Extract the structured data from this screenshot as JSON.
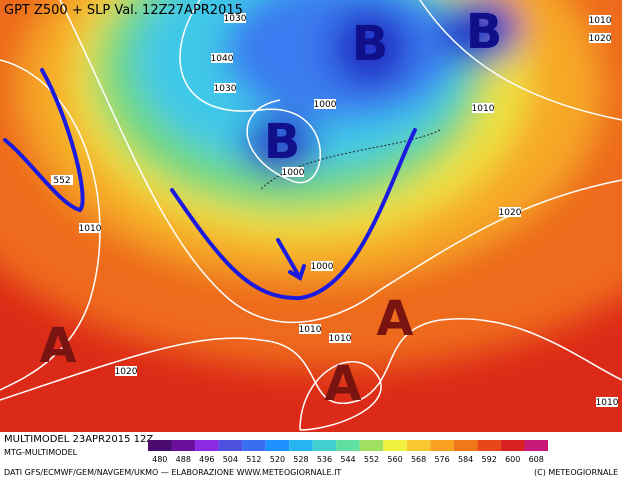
{
  "header": {
    "title": "GPT Z500 + SLP Val. 12Z27APR2015"
  },
  "map": {
    "pressure_centers": [
      "B",
      "B",
      "B",
      "A",
      "A",
      "A"
    ],
    "isobar_labels": [
      "1030",
      "1040",
      "1030",
      "1000",
      "1000",
      "552",
      "1010",
      "1000",
      "1010",
      "1010",
      "1020",
      "1010",
      "1020",
      "1010",
      "1020",
      "1010"
    ]
  },
  "footer": {
    "run": "MULTIMODEL 23APR2015 12Z",
    "source": "MTG-MULTIMODEL",
    "credits": "DATI GFS/ECMWF/GEM/NAVGEM/UKMO — ELABORAZIONE WWW.METEOGIORNALE.IT",
    "copyright": "(C) METEOGIORNALE"
  },
  "colorbar": {
    "values": [
      480,
      488,
      496,
      504,
      512,
      520,
      528,
      536,
      544,
      552,
      560,
      568,
      576,
      584,
      592,
      600,
      608
    ],
    "colors": [
      "#4b0a6e",
      "#6a0f9c",
      "#8a2be2",
      "#5050e0",
      "#3a6ef0",
      "#1e90ff",
      "#28b4f0",
      "#40d0d0",
      "#60e0a0",
      "#a0e060",
      "#f0f040",
      "#f8c830",
      "#f8a020",
      "#f07818",
      "#e84818",
      "#d82020",
      "#c81878"
    ]
  }
}
